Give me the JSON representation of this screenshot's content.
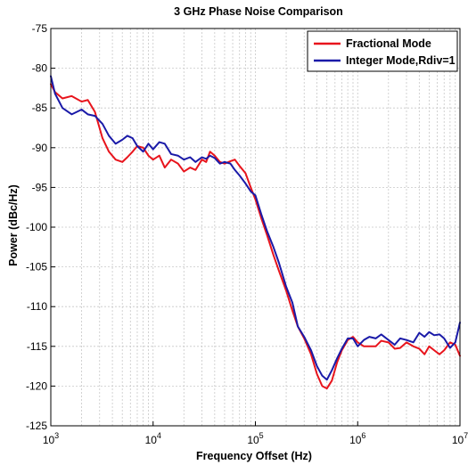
{
  "chart_data": {
    "type": "line",
    "title": "3 GHz Phase Noise Comparison",
    "xlabel": "Frequency Offset (Hz)",
    "ylabel": "Power (dBc/Hz)",
    "x_scale": "log",
    "xlim": [
      1000,
      10000000
    ],
    "ylim": [
      -125,
      -75
    ],
    "x_ticks": [
      {
        "value": 1000,
        "base": "10",
        "exp": "3"
      },
      {
        "value": 10000,
        "base": "10",
        "exp": "4"
      },
      {
        "value": 100000,
        "base": "10",
        "exp": "5"
      },
      {
        "value": 1000000,
        "base": "10",
        "exp": "6"
      },
      {
        "value": 10000000,
        "base": "10",
        "exp": "7"
      }
    ],
    "y_ticks": [
      -75,
      -80,
      -85,
      -90,
      -95,
      -100,
      -105,
      -110,
      -115,
      -120,
      -125
    ],
    "grid": true,
    "legend_position": "top-right",
    "series": [
      {
        "name": "Fractional Mode",
        "color": "#e8141c",
        "x": [
          1000,
          1100,
          1300,
          1600,
          2000,
          2300,
          2700,
          3200,
          3700,
          4300,
          5000,
          5600,
          6300,
          7000,
          8000,
          9000,
          10000,
          11500,
          13000,
          15000,
          17500,
          20000,
          23000,
          26000,
          30000,
          33000,
          36000,
          40000,
          45000,
          50000,
          57000,
          63000,
          70000,
          80000,
          90000,
          100000,
          115000,
          130000,
          150000,
          170000,
          200000,
          230000,
          260000,
          300000,
          350000,
          400000,
          450000,
          500000,
          560000,
          630000,
          700000,
          800000,
          900000,
          1000000,
          1150000,
          1300000,
          1500000,
          1700000,
          2000000,
          2300000,
          2600000,
          3000000,
          3500000,
          4000000,
          4500000,
          5000000,
          5600000,
          6300000,
          7000000,
          8000000,
          9000000,
          10000000
        ],
        "y": [
          -82.0,
          -83.0,
          -83.8,
          -83.5,
          -84.2,
          -84.0,
          -85.5,
          -88.8,
          -90.5,
          -91.5,
          -91.8,
          -91.2,
          -90.5,
          -89.8,
          -90.0,
          -91.0,
          -91.5,
          -91.0,
          -92.5,
          -91.5,
          -92.0,
          -93.0,
          -92.5,
          -92.8,
          -91.5,
          -91.8,
          -90.5,
          -91.0,
          -91.8,
          -92.0,
          -91.7,
          -91.5,
          -92.3,
          -93.2,
          -95.0,
          -96.5,
          -99.0,
          -101.0,
          -103.5,
          -105.5,
          -108.0,
          -110.5,
          -112.5,
          -114.0,
          -116.0,
          -118.5,
          -120.0,
          -120.3,
          -119.3,
          -117.0,
          -115.5,
          -114.2,
          -113.8,
          -114.5,
          -115.0,
          -115.0,
          -115.0,
          -114.3,
          -114.5,
          -115.3,
          -115.2,
          -114.5,
          -115.0,
          -115.3,
          -116.0,
          -115.0,
          -115.5,
          -116.0,
          -115.5,
          -114.5,
          -114.8,
          -116.2
        ]
      },
      {
        "name": "Integer Mode,Rdiv=1",
        "color": "#1a1aa8",
        "x": [
          1000,
          1100,
          1300,
          1600,
          2000,
          2300,
          2700,
          3200,
          3700,
          4300,
          5000,
          5600,
          6300,
          7000,
          8000,
          9000,
          10000,
          11500,
          13000,
          15000,
          17500,
          20000,
          23000,
          26000,
          30000,
          33000,
          36000,
          40000,
          45000,
          50000,
          57000,
          63000,
          70000,
          80000,
          90000,
          100000,
          115000,
          130000,
          150000,
          170000,
          200000,
          230000,
          260000,
          300000,
          350000,
          400000,
          450000,
          500000,
          560000,
          630000,
          700000,
          800000,
          900000,
          1000000,
          1150000,
          1300000,
          1500000,
          1700000,
          2000000,
          2300000,
          2600000,
          3000000,
          3500000,
          4000000,
          4500000,
          5000000,
          5600000,
          6300000,
          7000000,
          8000000,
          9000000,
          10000000
        ],
        "y": [
          -81.0,
          -83.2,
          -85.0,
          -85.8,
          -85.2,
          -85.8,
          -86.0,
          -87.0,
          -88.5,
          -89.5,
          -89.0,
          -88.5,
          -88.8,
          -89.8,
          -90.5,
          -89.5,
          -90.2,
          -89.3,
          -89.5,
          -90.8,
          -91.0,
          -91.5,
          -91.2,
          -91.8,
          -91.2,
          -91.4,
          -91.0,
          -91.3,
          -92.0,
          -91.8,
          -92.0,
          -92.8,
          -93.5,
          -94.5,
          -95.5,
          -96.0,
          -98.5,
          -100.5,
          -102.5,
          -104.5,
          -107.5,
          -109.5,
          -112.5,
          -113.8,
          -115.5,
          -117.5,
          -118.7,
          -119.2,
          -118.0,
          -116.5,
          -115.3,
          -114.0,
          -114.0,
          -115.0,
          -114.2,
          -113.8,
          -114.0,
          -113.5,
          -114.2,
          -114.8,
          -114.0,
          -114.2,
          -114.5,
          -113.3,
          -113.8,
          -113.2,
          -113.6,
          -113.5,
          -114.0,
          -115.2,
          -114.5,
          -112.0
        ]
      }
    ]
  }
}
